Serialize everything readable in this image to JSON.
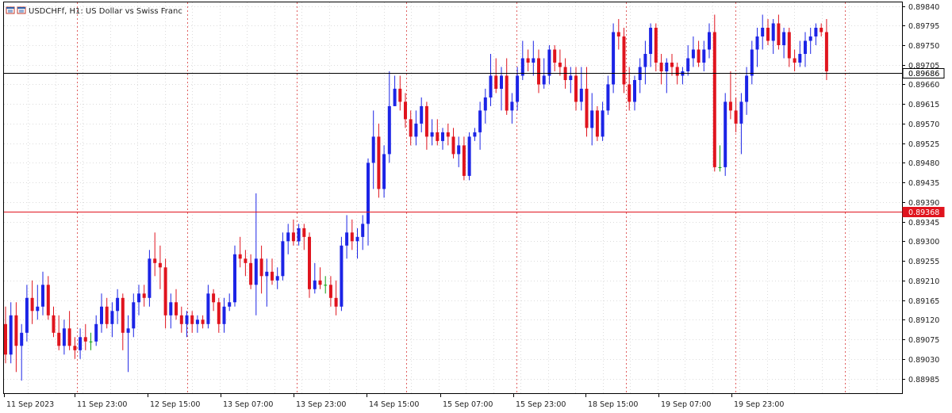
{
  "header": {
    "symbol_line": "USDCHFf, H1:  US Dollar vs Swiss Franc",
    "icon": "chart-window-icon"
  },
  "colors": {
    "bull": "#1c24e6",
    "bear": "#e0141e",
    "doji": "#10a010",
    "grid": "#dcdcdc",
    "separator": "#e06060",
    "axis": "#000000",
    "background": "#ffffff"
  },
  "chart_data": {
    "type": "candlestick",
    "timeframe": "H1",
    "ylim": [
      0.8895,
      0.8985
    ],
    "y_ticks": [
      "0.89840",
      "0.89795",
      "0.89750",
      "0.89705",
      "0.89660",
      "0.89615",
      "0.89570",
      "0.89525",
      "0.89480",
      "0.89435",
      "0.89390",
      "0.89345",
      "0.89300",
      "0.89255",
      "0.89210",
      "0.89165",
      "0.89120",
      "0.89075",
      "0.89030",
      "0.88985"
    ],
    "x_ticks": [
      "11 Sep 2023",
      "11 Sep 23:00",
      "12 Sep 15:00",
      "13 Sep 07:00",
      "13 Sep 23:00",
      "14 Sep 15:00",
      "15 Sep 07:00",
      "15 Sep 23:00",
      "18 Sep 15:00",
      "19 Sep 07:00",
      "19 Sep 23:00"
    ],
    "price_lines": [
      {
        "label": "0.89686",
        "value": 0.89686,
        "style": "bid"
      },
      {
        "label": "0.89368",
        "value": 0.89368,
        "style": "ask"
      }
    ],
    "candles": [
      [
        0.8911,
        0.8915,
        0.8902,
        0.8904
      ],
      [
        0.8904,
        0.8916,
        0.8902,
        0.8913
      ],
      [
        0.8913,
        0.8916,
        0.89,
        0.8906
      ],
      [
        0.8906,
        0.8911,
        0.8898,
        0.8909
      ],
      [
        0.8909,
        0.892,
        0.8907,
        0.8917
      ],
      [
        0.8917,
        0.8921,
        0.8911,
        0.8914
      ],
      [
        0.8914,
        0.892,
        0.8912,
        0.8915
      ],
      [
        0.8915,
        0.8923,
        0.8913,
        0.892
      ],
      [
        0.892,
        0.8922,
        0.8912,
        0.8913
      ],
      [
        0.8913,
        0.8915,
        0.8908,
        0.8909
      ],
      [
        0.8909,
        0.8913,
        0.8905,
        0.8906
      ],
      [
        0.8906,
        0.8912,
        0.8904,
        0.891
      ],
      [
        0.891,
        0.8914,
        0.8905,
        0.8906
      ],
      [
        0.8906,
        0.8908,
        0.8903,
        0.8905
      ],
      [
        0.8905,
        0.891,
        0.8903,
        0.8908
      ],
      [
        0.8908,
        0.8911,
        0.8905,
        0.8907
      ],
      [
        0.8907,
        0.8909,
        0.8905,
        0.8907
      ],
      [
        0.8907,
        0.8913,
        0.8906,
        0.8911
      ],
      [
        0.8911,
        0.8918,
        0.8909,
        0.8915
      ],
      [
        0.8915,
        0.8917,
        0.891,
        0.8911
      ],
      [
        0.8911,
        0.8916,
        0.8908,
        0.8914
      ],
      [
        0.8914,
        0.8919,
        0.8911,
        0.8917
      ],
      [
        0.8917,
        0.8918,
        0.8905,
        0.8909
      ],
      [
        0.8909,
        0.8913,
        0.89,
        0.891
      ],
      [
        0.891,
        0.8918,
        0.8908,
        0.8916
      ],
      [
        0.8916,
        0.892,
        0.8913,
        0.8918
      ],
      [
        0.8918,
        0.892,
        0.8915,
        0.8917
      ],
      [
        0.8917,
        0.8928,
        0.8915,
        0.8926
      ],
      [
        0.8926,
        0.8932,
        0.8922,
        0.8925
      ],
      [
        0.8925,
        0.8929,
        0.8919,
        0.8924
      ],
      [
        0.8924,
        0.8926,
        0.891,
        0.8913
      ],
      [
        0.8913,
        0.8918,
        0.891,
        0.8916
      ],
      [
        0.8916,
        0.8919,
        0.8912,
        0.8913
      ],
      [
        0.8913,
        0.8915,
        0.8909,
        0.8911
      ],
      [
        0.8911,
        0.8914,
        0.8908,
        0.8913
      ],
      [
        0.8913,
        0.8914,
        0.8909,
        0.8911
      ],
      [
        0.8911,
        0.8913,
        0.8909,
        0.8912
      ],
      [
        0.8912,
        0.8913,
        0.891,
        0.8911
      ],
      [
        0.8911,
        0.892,
        0.891,
        0.8918
      ],
      [
        0.8918,
        0.8919,
        0.8914,
        0.8916
      ],
      [
        0.8916,
        0.8917,
        0.8909,
        0.8911
      ],
      [
        0.8911,
        0.8917,
        0.8909,
        0.8915
      ],
      [
        0.8915,
        0.8918,
        0.8914,
        0.8916
      ],
      [
        0.8916,
        0.8929,
        0.8915,
        0.8927
      ],
      [
        0.8927,
        0.8931,
        0.8924,
        0.8926
      ],
      [
        0.8926,
        0.8928,
        0.8922,
        0.8925
      ],
      [
        0.8925,
        0.8927,
        0.8919,
        0.892
      ],
      [
        0.892,
        0.8941,
        0.8913,
        0.8926
      ],
      [
        0.8926,
        0.8929,
        0.8918,
        0.8922
      ],
      [
        0.8922,
        0.8926,
        0.8915,
        0.8923
      ],
      [
        0.8923,
        0.8926,
        0.892,
        0.8921
      ],
      [
        0.8921,
        0.8924,
        0.8919,
        0.8922
      ],
      [
        0.8922,
        0.8932,
        0.8921,
        0.893
      ],
      [
        0.893,
        0.8934,
        0.8927,
        0.8932
      ],
      [
        0.8932,
        0.8935,
        0.8929,
        0.893
      ],
      [
        0.893,
        0.8934,
        0.8929,
        0.8933
      ],
      [
        0.8933,
        0.8934,
        0.8928,
        0.8931
      ],
      [
        0.8931,
        0.8932,
        0.8917,
        0.8919
      ],
      [
        0.8919,
        0.8925,
        0.8918,
        0.8921
      ],
      [
        0.8921,
        0.8924,
        0.8919,
        0.892
      ],
      [
        0.892,
        0.8922,
        0.8918,
        0.892
      ],
      [
        0.892,
        0.8922,
        0.8915,
        0.8917
      ],
      [
        0.8917,
        0.8921,
        0.8913,
        0.8915
      ],
      [
        0.8915,
        0.8931,
        0.8914,
        0.8929
      ],
      [
        0.8929,
        0.8936,
        0.8926,
        0.8932
      ],
      [
        0.8932,
        0.8935,
        0.8928,
        0.893
      ],
      [
        0.893,
        0.8933,
        0.8926,
        0.8931
      ],
      [
        0.8931,
        0.8936,
        0.8928,
        0.8934
      ],
      [
        0.8934,
        0.8949,
        0.8929,
        0.8948
      ],
      [
        0.8948,
        0.896,
        0.8942,
        0.8954
      ],
      [
        0.8954,
        0.8957,
        0.894,
        0.8942
      ],
      [
        0.8942,
        0.8952,
        0.894,
        0.895
      ],
      [
        0.895,
        0.8969,
        0.8948,
        0.8961
      ],
      [
        0.8961,
        0.8968,
        0.8961,
        0.8965
      ],
      [
        0.8965,
        0.8968,
        0.896,
        0.8962
      ],
      [
        0.8962,
        0.8964,
        0.8956,
        0.8958
      ],
      [
        0.8958,
        0.896,
        0.8952,
        0.8954
      ],
      [
        0.8954,
        0.896,
        0.8952,
        0.8957
      ],
      [
        0.8957,
        0.8963,
        0.8955,
        0.8961
      ],
      [
        0.8961,
        0.8962,
        0.8951,
        0.8954
      ],
      [
        0.8954,
        0.8958,
        0.8952,
        0.8955
      ],
      [
        0.8955,
        0.8958,
        0.8952,
        0.8953
      ],
      [
        0.8953,
        0.8956,
        0.8951,
        0.8955
      ],
      [
        0.8955,
        0.8957,
        0.8952,
        0.8954
      ],
      [
        0.8954,
        0.8956,
        0.8949,
        0.895
      ],
      [
        0.895,
        0.8954,
        0.8947,
        0.8952
      ],
      [
        0.8952,
        0.8954,
        0.8944,
        0.8945
      ],
      [
        0.8945,
        0.8955,
        0.8944,
        0.8954
      ],
      [
        0.8954,
        0.8956,
        0.8953,
        0.8955
      ],
      [
        0.8955,
        0.8962,
        0.8951,
        0.896
      ],
      [
        0.896,
        0.8965,
        0.8957,
        0.8963
      ],
      [
        0.8963,
        0.8973,
        0.8961,
        0.8968
      ],
      [
        0.8968,
        0.8972,
        0.8964,
        0.8965
      ],
      [
        0.8965,
        0.897,
        0.896,
        0.8968
      ],
      [
        0.8968,
        0.8972,
        0.8959,
        0.896
      ],
      [
        0.896,
        0.8964,
        0.8957,
        0.8962
      ],
      [
        0.8962,
        0.897,
        0.896,
        0.8968
      ],
      [
        0.8968,
        0.8976,
        0.8967,
        0.8972
      ],
      [
        0.8972,
        0.8974,
        0.8969,
        0.8971
      ],
      [
        0.8971,
        0.8976,
        0.8968,
        0.8972
      ],
      [
        0.8972,
        0.8974,
        0.8964,
        0.8966
      ],
      [
        0.8966,
        0.8972,
        0.8965,
        0.8968
      ],
      [
        0.8968,
        0.8975,
        0.8966,
        0.8974
      ],
      [
        0.8974,
        0.8975,
        0.8969,
        0.8971
      ],
      [
        0.8971,
        0.8974,
        0.8968,
        0.897
      ],
      [
        0.897,
        0.8972,
        0.8965,
        0.8967
      ],
      [
        0.8967,
        0.897,
        0.8964,
        0.8968
      ],
      [
        0.8968,
        0.897,
        0.896,
        0.8962
      ],
      [
        0.8962,
        0.897,
        0.896,
        0.8965
      ],
      [
        0.8965,
        0.897,
        0.8954,
        0.8956
      ],
      [
        0.8956,
        0.8964,
        0.8952,
        0.896
      ],
      [
        0.896,
        0.8961,
        0.8953,
        0.8954
      ],
      [
        0.8954,
        0.8962,
        0.8953,
        0.896
      ],
      [
        0.896,
        0.8968,
        0.8959,
        0.8966
      ],
      [
        0.8966,
        0.898,
        0.8964,
        0.8978
      ],
      [
        0.8978,
        0.8981,
        0.8974,
        0.8977
      ],
      [
        0.8977,
        0.8979,
        0.8964,
        0.8966
      ],
      [
        0.8966,
        0.897,
        0.896,
        0.8962
      ],
      [
        0.8962,
        0.8968,
        0.896,
        0.8967
      ],
      [
        0.8967,
        0.8972,
        0.8964,
        0.897
      ],
      [
        0.897,
        0.8976,
        0.8966,
        0.8973
      ],
      [
        0.8973,
        0.898,
        0.897,
        0.8979
      ],
      [
        0.8979,
        0.898,
        0.8969,
        0.8971
      ],
      [
        0.8971,
        0.8973,
        0.8966,
        0.8969
      ],
      [
        0.8969,
        0.8972,
        0.8964,
        0.8971
      ],
      [
        0.8971,
        0.8973,
        0.8968,
        0.897
      ],
      [
        0.897,
        0.8971,
        0.8966,
        0.8968
      ],
      [
        0.8968,
        0.897,
        0.8966,
        0.8969
      ],
      [
        0.8969,
        0.8975,
        0.8968,
        0.8972
      ],
      [
        0.8972,
        0.8977,
        0.897,
        0.8974
      ],
      [
        0.8974,
        0.8976,
        0.897,
        0.8971
      ],
      [
        0.8971,
        0.8976,
        0.8969,
        0.8974
      ],
      [
        0.8974,
        0.898,
        0.8972,
        0.8978
      ],
      [
        0.8978,
        0.8982,
        0.8946,
        0.8947
      ],
      [
        0.8947,
        0.8952,
        0.8946,
        0.8947
      ],
      [
        0.8947,
        0.8964,
        0.8945,
        0.8962
      ],
      [
        0.8962,
        0.8969,
        0.8958,
        0.896
      ],
      [
        0.896,
        0.8963,
        0.8955,
        0.8957
      ],
      [
        0.8957,
        0.8964,
        0.895,
        0.8962
      ],
      [
        0.8962,
        0.897,
        0.8959,
        0.8968
      ],
      [
        0.8968,
        0.8976,
        0.8966,
        0.8974
      ],
      [
        0.8974,
        0.8979,
        0.897,
        0.8977
      ],
      [
        0.8977,
        0.8982,
        0.8974,
        0.8979
      ],
      [
        0.8979,
        0.8981,
        0.8975,
        0.8976
      ],
      [
        0.8976,
        0.8981,
        0.8973,
        0.898
      ],
      [
        0.898,
        0.8982,
        0.8974,
        0.8975
      ],
      [
        0.8975,
        0.8979,
        0.8972,
        0.8978
      ],
      [
        0.8978,
        0.8979,
        0.897,
        0.8972
      ],
      [
        0.8972,
        0.8974,
        0.8969,
        0.8971
      ],
      [
        0.8971,
        0.8976,
        0.897,
        0.8973
      ],
      [
        0.8973,
        0.8978,
        0.897,
        0.8976
      ],
      [
        0.8976,
        0.8979,
        0.8973,
        0.8977
      ],
      [
        0.8977,
        0.898,
        0.8975,
        0.8979
      ],
      [
        0.8979,
        0.898,
        0.8977,
        0.8978
      ],
      [
        0.8978,
        0.8981,
        0.8967,
        0.8969
      ]
    ]
  }
}
